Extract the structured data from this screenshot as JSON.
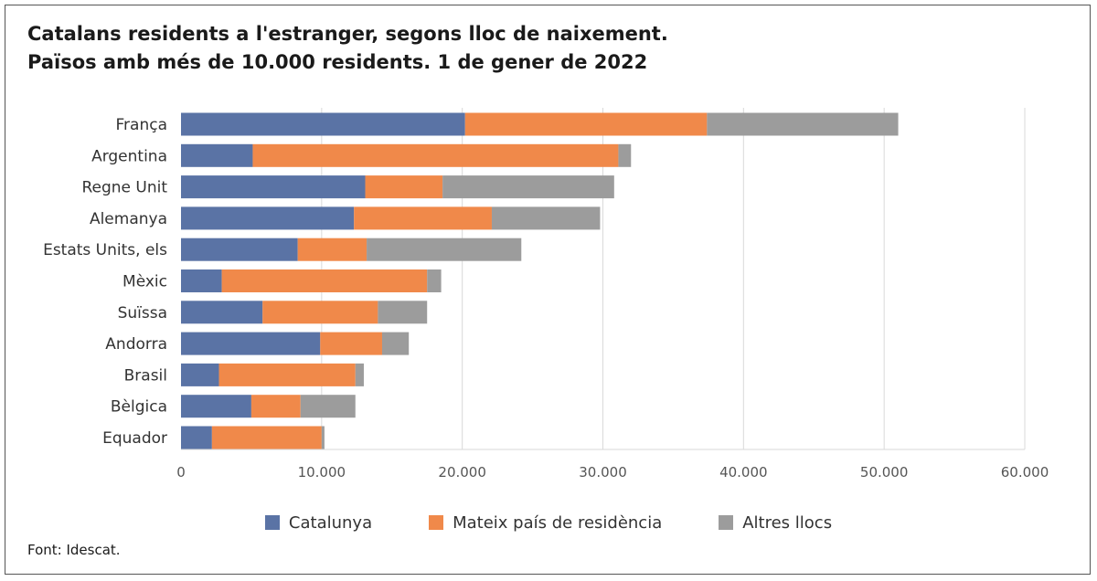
{
  "title_line1": "Catalans residents a l'estranger, segons lloc de naixement.",
  "title_line2": "Països amb més de 10.000 residents. 1 de gener de 2022",
  "source": "Font: Idescat.",
  "colors": {
    "Catalunya": "#5a73a5",
    "Mateix país de residència": "#f0894a",
    "Altres llocs": "#9c9c9c",
    "grid": "#d9d9d9"
  },
  "chart_data": {
    "type": "bar",
    "orientation": "horizontal",
    "stacked": true,
    "categories": [
      "França",
      "Argentina",
      "Regne Unit",
      "Alemanya",
      "Estats Units, els",
      "Mèxic",
      "Suïssa",
      "Andorra",
      "Brasil",
      "Bèlgica",
      "Equador"
    ],
    "series": [
      {
        "name": "Catalunya",
        "values": [
          20200,
          5100,
          13100,
          12300,
          8300,
          2900,
          5800,
          9900,
          2700,
          5000,
          2200
        ]
      },
      {
        "name": "Mateix país de residència",
        "values": [
          17200,
          26000,
          5500,
          9800,
          4900,
          14600,
          8200,
          4400,
          9700,
          3500,
          7800
        ]
      },
      {
        "name": "Altres llocs",
        "values": [
          13600,
          900,
          12200,
          7700,
          11000,
          1000,
          3500,
          1900,
          600,
          3900,
          200
        ]
      }
    ],
    "xlim": [
      0,
      60000
    ],
    "xticks": [
      "0",
      "10.000",
      "20.000",
      "30.000",
      "40.000",
      "50.000",
      "60.000"
    ],
    "xtick_values": [
      0,
      10000,
      20000,
      30000,
      40000,
      50000,
      60000
    ],
    "grid": true,
    "legend_position": "bottom",
    "title": "Catalans residents a l'estranger, segons lloc de naixement. Països amb més de 10.000 residents. 1 de gener de 2022"
  }
}
